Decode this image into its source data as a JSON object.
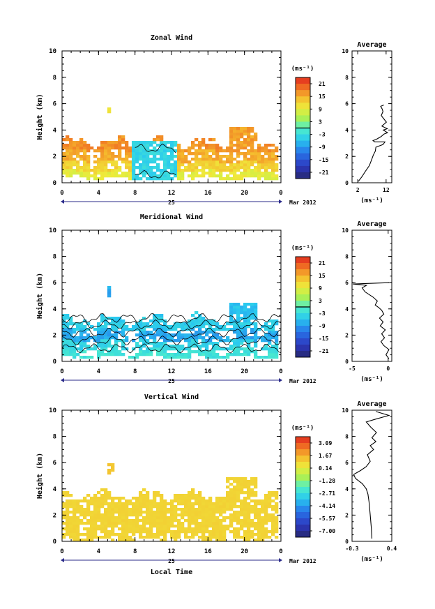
{
  "chart_data": [
    {
      "type": "heatmap",
      "title": "Zonal Wind",
      "ylabel": "Height (km)",
      "xlabel": "",
      "xticks": [
        "0",
        "4",
        "8",
        "12",
        "16",
        "20",
        "0"
      ],
      "yticks": [
        "0",
        "2",
        "4",
        "6",
        "8",
        "10"
      ],
      "xlim": [
        0,
        24
      ],
      "ylim": [
        0,
        10
      ],
      "date_label": "25",
      "month_label": "Mar 2012",
      "colorbar": {
        "unit_label": "(ms⁻¹)",
        "ticks": [
          "21",
          "15",
          "9",
          "3",
          "-3",
          "-9",
          "-15",
          "-21"
        ],
        "range": [
          -24,
          24
        ],
        "zero_line": 0
      },
      "bands": [
        {
          "ylo": 0.3,
          "yhi": 1.1,
          "value": 9
        },
        {
          "ylo": 0.9,
          "yhi": 1.9,
          "value": 12
        },
        {
          "ylo": 1.6,
          "yhi": 2.6,
          "value": 15
        },
        {
          "ylo": 2.4,
          "yhi": 3.1,
          "value": 17
        }
      ],
      "patches": [
        {
          "x0": 7.8,
          "x1": 12.8,
          "ylo": 0.3,
          "yhi": 3.1,
          "value": -4
        },
        {
          "x0": 18.5,
          "x1": 21.5,
          "ylo": 2.8,
          "yhi": 4.3,
          "value": 16
        },
        {
          "x0": 5.1,
          "x1": 5.3,
          "ylo": 5.2,
          "yhi": 5.8,
          "value": 10
        }
      ],
      "average": {
        "title": "Average",
        "xlabel": "(ms⁻¹)",
        "xticks": [
          "2",
          "12"
        ],
        "xlim": [
          0,
          14
        ],
        "ylim": [
          0,
          10
        ],
        "yticks": [
          "0",
          "2",
          "4",
          "6",
          "8",
          "10"
        ],
        "profile": [
          [
            2.2,
            0.1
          ],
          [
            3.6,
            0.5
          ],
          [
            4.8,
            0.9
          ],
          [
            6.1,
            1.3
          ],
          [
            6.8,
            1.7
          ],
          [
            7.5,
            2.1
          ],
          [
            8.2,
            2.4
          ],
          [
            8.4,
            2.7
          ],
          [
            10.9,
            2.9
          ],
          [
            11.6,
            3.1
          ],
          [
            9.7,
            3.1
          ],
          [
            8.0,
            3.1
          ],
          [
            7.4,
            3.2
          ],
          [
            8.6,
            3.3
          ],
          [
            10.2,
            3.5
          ],
          [
            11.3,
            3.7
          ],
          [
            12.5,
            3.8
          ],
          [
            11.0,
            4.0
          ],
          [
            12.4,
            4.1
          ],
          [
            10.5,
            4.3
          ],
          [
            12.1,
            4.6
          ],
          [
            11.0,
            4.9
          ],
          [
            10.3,
            5.1
          ],
          [
            10.9,
            5.4
          ],
          [
            10.6,
            5.6
          ],
          [
            10.1,
            5.8
          ],
          [
            11.2,
            5.9
          ]
        ]
      }
    },
    {
      "type": "heatmap",
      "title": "Meridional Wind",
      "ylabel": "Height (km)",
      "xlabel": "",
      "xticks": [
        "0",
        "4",
        "8",
        "12",
        "16",
        "20",
        "0"
      ],
      "yticks": [
        "0",
        "2",
        "4",
        "6",
        "8",
        "10"
      ],
      "xlim": [
        0,
        24
      ],
      "ylim": [
        0,
        10
      ],
      "date_label": "25",
      "month_label": "Mar 2012",
      "colorbar": {
        "unit_label": "(ms⁻¹)",
        "ticks": [
          "21",
          "15",
          "9",
          "3",
          "-3",
          "-9",
          "-15",
          "-21"
        ],
        "range": [
          -24,
          24
        ],
        "zero_line": 0
      },
      "bands": [
        {
          "ylo": 0.3,
          "yhi": 0.9,
          "value": -2
        },
        {
          "ylo": 0.9,
          "yhi": 1.6,
          "value": -4
        },
        {
          "ylo": 1.6,
          "yhi": 2.4,
          "value": -8
        },
        {
          "ylo": 2.4,
          "yhi": 3.2,
          "value": -5
        }
      ],
      "patches": [
        {
          "x0": 18.5,
          "x1": 21.5,
          "ylo": 3.0,
          "yhi": 4.4,
          "value": -6
        },
        {
          "x0": 5.1,
          "x1": 5.3,
          "ylo": 4.7,
          "yhi": 5.7,
          "value": -8
        }
      ],
      "average": {
        "title": "Average",
        "xlabel": "(ms⁻¹)",
        "xticks": [
          "-5",
          "0"
        ],
        "xlim": [
          -5,
          0.5
        ],
        "ylim": [
          0,
          10
        ],
        "yticks": [
          "0",
          "2",
          "4",
          "6",
          "8",
          "10"
        ],
        "profile": [
          [
            0.1,
            0.2
          ],
          [
            -0.3,
            0.5
          ],
          [
            0.1,
            0.9
          ],
          [
            -0.6,
            1.2
          ],
          [
            -1.0,
            1.5
          ],
          [
            -0.5,
            1.8
          ],
          [
            -0.9,
            2.1
          ],
          [
            -0.4,
            2.4
          ],
          [
            -1.1,
            2.7
          ],
          [
            -0.7,
            3.0
          ],
          [
            -1.2,
            3.3
          ],
          [
            -0.6,
            3.6
          ],
          [
            -0.9,
            3.9
          ],
          [
            -1.3,
            4.1
          ],
          [
            -1.8,
            4.3
          ],
          [
            -1.5,
            4.6
          ],
          [
            -2.1,
            4.9
          ],
          [
            -3.2,
            5.3
          ],
          [
            -3.6,
            5.6
          ],
          [
            -3.0,
            5.8
          ],
          [
            -4.9,
            5.9
          ],
          [
            0.1,
            6.0
          ]
        ]
      }
    },
    {
      "type": "heatmap",
      "title": "Vertical Wind",
      "ylabel": "Height (km)",
      "xlabel": "Local Time",
      "xticks": [
        "0",
        "4",
        "8",
        "12",
        "16",
        "20",
        "0"
      ],
      "yticks": [
        "0",
        "2",
        "4",
        "6",
        "8",
        "10"
      ],
      "xlim": [
        0,
        24
      ],
      "ylim": [
        0,
        10
      ],
      "date_label": "25",
      "month_label": "Mar 2012",
      "colorbar": {
        "unit_label": "(ms⁻¹)",
        "ticks": [
          "3.09",
          "1.67",
          "0.14",
          "-1.28",
          "-2.71",
          "-4.14",
          "-5.57",
          "-7.00"
        ],
        "range": [
          -7.7,
          3.8
        ],
        "zero_line": null
      },
      "bands": [
        {
          "ylo": 0.1,
          "yhi": 3.6,
          "value": 0.9
        }
      ],
      "patches": [
        {
          "x0": 18.0,
          "x1": 21.5,
          "ylo": 3.4,
          "yhi": 4.8,
          "value": 0.9
        },
        {
          "x0": 4.8,
          "x1": 5.6,
          "ylo": 5.2,
          "yhi": 5.9,
          "value": 1.2
        }
      ],
      "average": {
        "title": "Average",
        "xlabel": "(ms⁻¹)",
        "xticks": [
          "-0.3",
          "0.4"
        ],
        "xlim": [
          -0.3,
          0.4
        ],
        "ylim": [
          0,
          10
        ],
        "yticks": [
          "0",
          "2",
          "4",
          "6",
          "8",
          "10"
        ],
        "profile": [
          [
            0.05,
            0.2
          ],
          [
            0.04,
            1.0
          ],
          [
            0.02,
            2.0
          ],
          [
            0.0,
            3.0
          ],
          [
            -0.02,
            3.6
          ],
          [
            -0.05,
            4.0
          ],
          [
            -0.12,
            4.4
          ],
          [
            -0.24,
            4.8
          ],
          [
            -0.27,
            5.1
          ],
          [
            -0.15,
            5.4
          ],
          [
            -0.05,
            5.7
          ],
          [
            0.02,
            6.1
          ],
          [
            -0.03,
            6.6
          ],
          [
            0.08,
            7.0
          ],
          [
            0.02,
            7.3
          ],
          [
            0.12,
            7.6
          ],
          [
            0.05,
            7.9
          ],
          [
            0.13,
            8.3
          ],
          [
            0.03,
            8.7
          ],
          [
            -0.05,
            9.1
          ],
          [
            0.1,
            9.3
          ],
          [
            0.35,
            9.6
          ],
          [
            0.12,
            9.9
          ]
        ]
      }
    }
  ]
}
